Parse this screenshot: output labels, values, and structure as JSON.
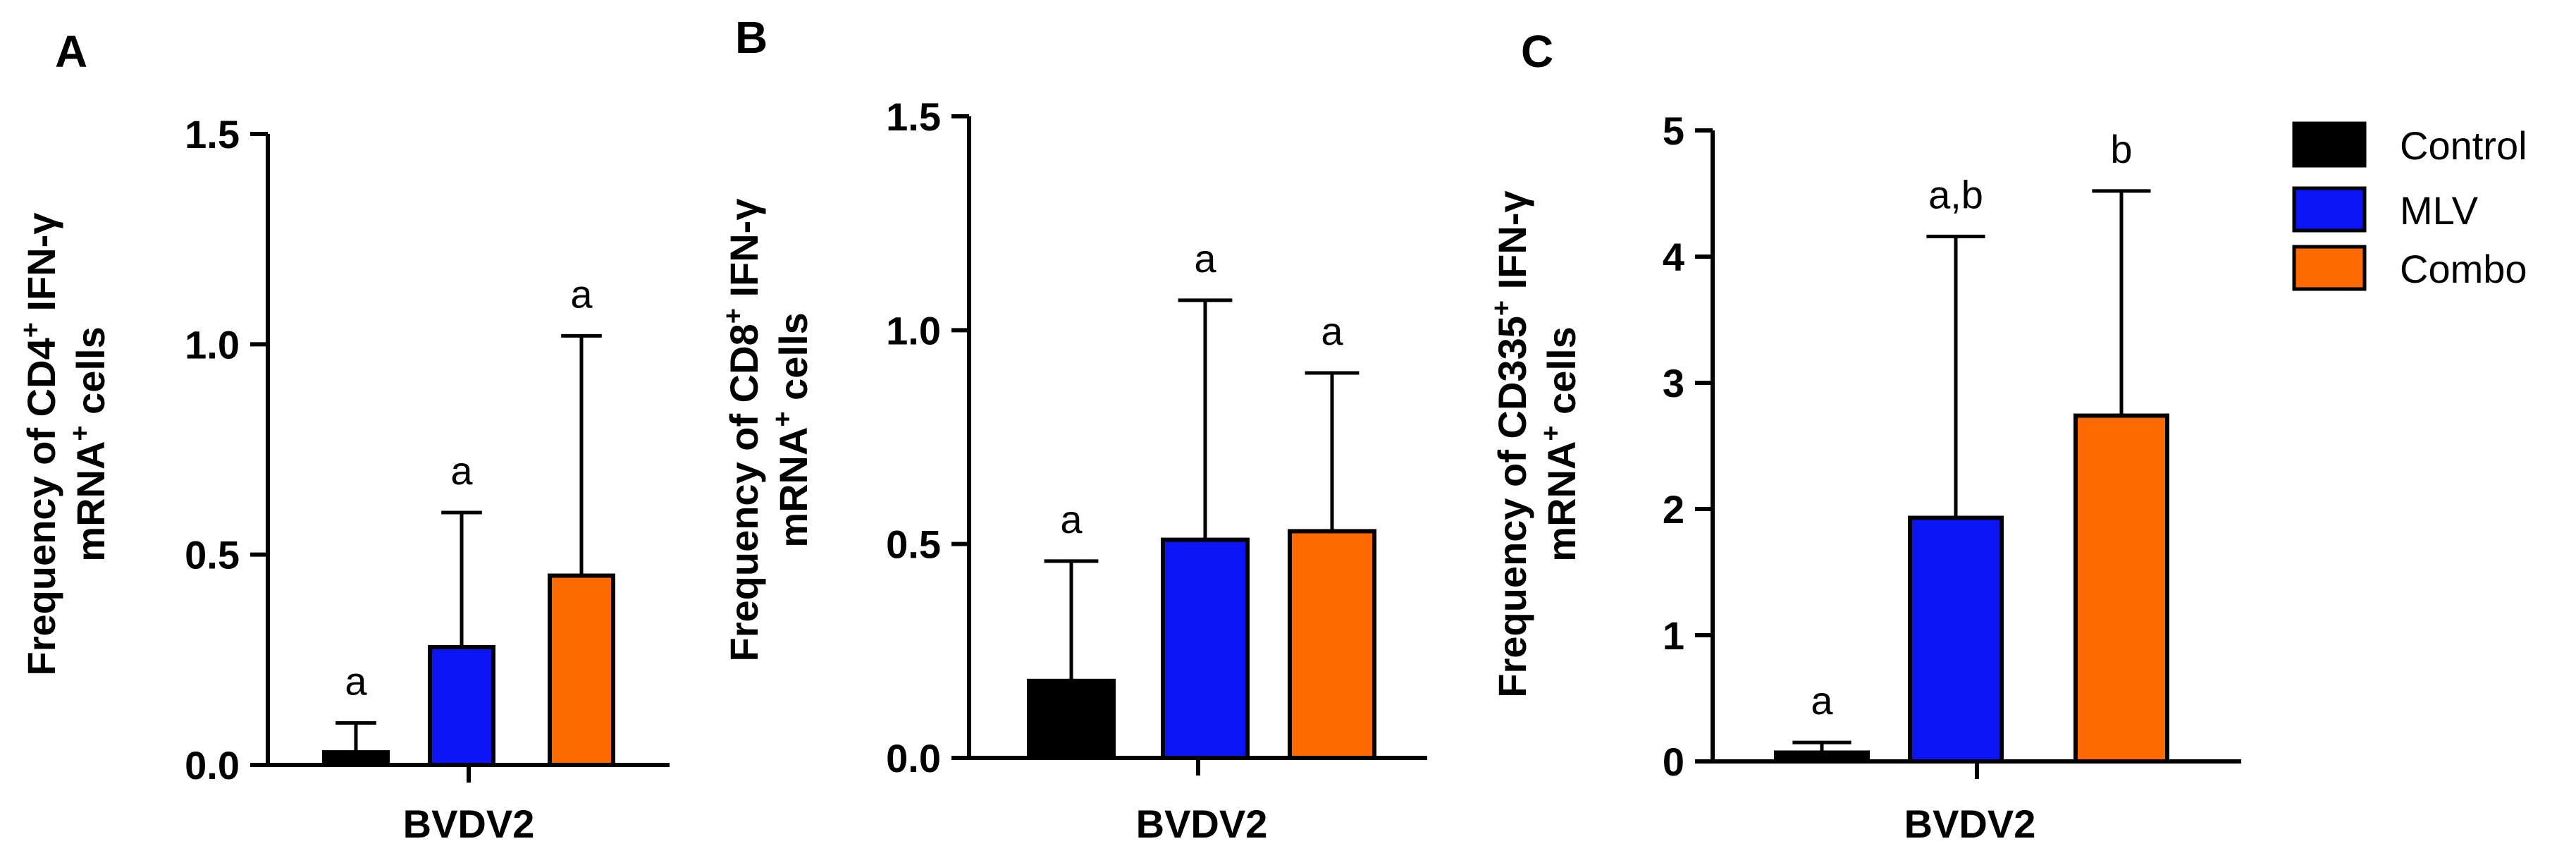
{
  "panels": [
    {
      "letter": "A",
      "ylabel_line1": {
        "pre": "Frequency of CD4",
        "sup": "+",
        "post": " IFN-γ"
      },
      "ylabel_line2": {
        "pre": "mRNA",
        "sup": "+",
        "post": " cells"
      },
      "xlabel": "BVDV2"
    },
    {
      "letter": "B",
      "ylabel_line1": {
        "pre": "Frequency of CD8",
        "sup": "+",
        "post": " IFN-γ"
      },
      "ylabel_line2": {
        "pre": "mRNA",
        "sup": "+",
        "post": " cells"
      },
      "xlabel": "BVDV2"
    },
    {
      "letter": "C",
      "ylabel_line1": {
        "pre": "Frequency of CD335",
        "sup": "+",
        "post": " IFN-γ"
      },
      "ylabel_line2": {
        "pre": "mRNA",
        "sup": "+",
        "post": " cells"
      },
      "xlabel": "BVDV2"
    }
  ],
  "legend": {
    "items": [
      {
        "label": "Control",
        "color": "#000000"
      },
      {
        "label": "MLV",
        "color": "#0a14f5"
      },
      {
        "label": "Combo",
        "color": "#ff6a00"
      }
    ]
  },
  "chart_data": [
    {
      "type": "bar",
      "title": "",
      "xlabel": "BVDV2",
      "ylabel": "Frequency of CD4+ IFN-γ mRNA+ cells",
      "ylim": [
        0,
        1.5
      ],
      "yticks": [
        0.0,
        0.5,
        1.0,
        1.5
      ],
      "ytick_labels": [
        "0.0",
        "0.5",
        "1.0",
        "1.5"
      ],
      "categories": [
        "Control",
        "MLV",
        "Combo"
      ],
      "values": [
        0.03,
        0.28,
        0.45
      ],
      "errors_upper": [
        0.07,
        0.32,
        0.57
      ],
      "significance": [
        "a",
        "a",
        "a"
      ],
      "colors": [
        "#000000",
        "#0a14f5",
        "#ff6a00"
      ]
    },
    {
      "type": "bar",
      "title": "",
      "xlabel": "BVDV2",
      "ylabel": "Frequency of CD8+ IFN-γ mRNA+ cells",
      "ylim": [
        0,
        1.5
      ],
      "yticks": [
        0.0,
        0.5,
        1.0,
        1.5
      ],
      "ytick_labels": [
        "0.0",
        "0.5",
        "1.0",
        "1.5"
      ],
      "categories": [
        "Control",
        "MLV",
        "Combo"
      ],
      "values": [
        0.18,
        0.51,
        0.53
      ],
      "errors_upper": [
        0.28,
        0.56,
        0.37
      ],
      "significance": [
        "a",
        "a",
        "a"
      ],
      "colors": [
        "#000000",
        "#0a14f5",
        "#ff6a00"
      ]
    },
    {
      "type": "bar",
      "title": "",
      "xlabel": "BVDV2",
      "ylabel": "Frequency of CD335+ IFN-γ mRNA+ cells",
      "ylim": [
        0,
        5
      ],
      "yticks": [
        0,
        1,
        2,
        3,
        4,
        5
      ],
      "ytick_labels": [
        "0",
        "1",
        "2",
        "3",
        "4",
        "5"
      ],
      "categories": [
        "Control",
        "MLV",
        "Combo"
      ],
      "values": [
        0.07,
        1.93,
        2.74
      ],
      "errors_upper": [
        0.08,
        2.23,
        1.78
      ],
      "significance": [
        "a",
        "a,b",
        "b"
      ],
      "colors": [
        "#000000",
        "#0a14f5",
        "#ff6a00"
      ]
    }
  ]
}
